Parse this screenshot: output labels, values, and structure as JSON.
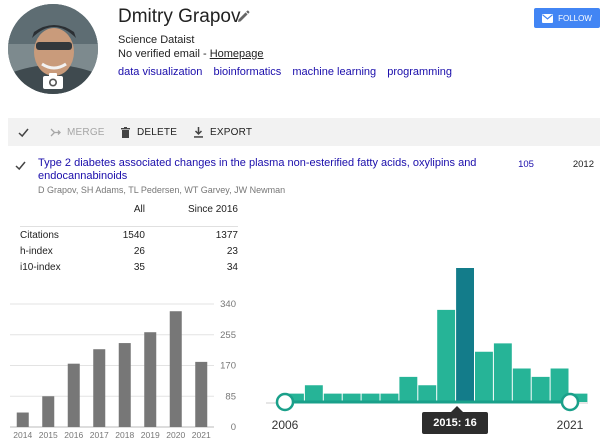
{
  "profile": {
    "name": "Dmitry Grapov",
    "affiliation": "Science Dataist",
    "email_text": "No verified email - ",
    "homepage_label": "Homepage",
    "interests": [
      "data visualization",
      "bioinformatics",
      "machine learning",
      "programming"
    ],
    "follow_label": "FOLLOW",
    "accent_color": "#4285f4"
  },
  "toolbar": {
    "merge_label": "MERGE",
    "delete_label": "DELETE",
    "export_label": "EXPORT"
  },
  "publication": {
    "title": "Type 2 diabetes associated changes in the plasma non-esterified fatty acids, oxylipins and endocannabinoids",
    "authors": "D Grapov, SH Adams, TL Pedersen, WT Garvey, JW Newman",
    "cited_by": "105",
    "year": "2012"
  },
  "stats": {
    "header_all": "All",
    "header_since": "Since 2016",
    "rows": [
      {
        "label": "Citations",
        "all": "1540",
        "since": "1377"
      },
      {
        "label": "h-index",
        "all": "26",
        "since": "23"
      },
      {
        "label": "i10-index",
        "all": "35",
        "since": "34"
      }
    ]
  },
  "chart_data": [
    {
      "type": "bar",
      "categories": [
        "2014",
        "2015",
        "2016",
        "2017",
        "2018",
        "2019",
        "2020",
        "2021"
      ],
      "values": [
        40,
        85,
        175,
        215,
        232,
        262,
        320,
        180
      ],
      "ylim": [
        0,
        340
      ],
      "yticks": [
        "340",
        "255",
        "170",
        "85",
        "0"
      ],
      "bar_color": "#777777"
    },
    {
      "type": "bar",
      "x": [
        2006,
        2007,
        2008,
        2009,
        2010,
        2011,
        2012,
        2013,
        2014,
        2015,
        2016,
        2017,
        2018,
        2019,
        2020,
        2021
      ],
      "values": [
        1,
        2,
        1,
        1,
        1,
        1,
        3,
        2,
        11,
        16,
        6,
        7,
        4,
        3,
        4,
        1
      ],
      "range_start_label": "2006",
      "range_end_label": "2021",
      "tooltip": "2015: 16",
      "highlight": "2015",
      "bar_color": "#26b497",
      "highlight_color": "#137c8a",
      "handle_color": "#1aa08a"
    }
  ]
}
